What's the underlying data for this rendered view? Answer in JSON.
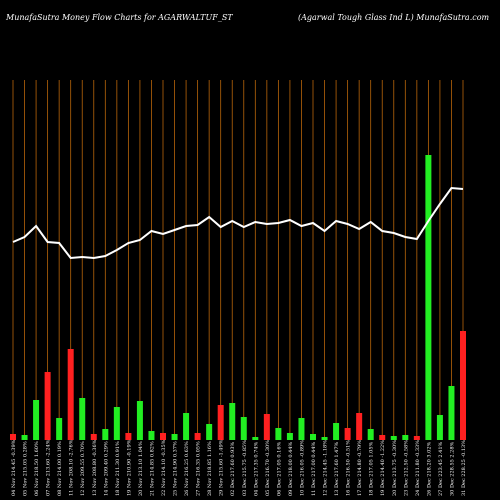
{
  "chart_data": {
    "type": "moneyflow",
    "title": "MunafaSutra  Money Flow  Charts for AGARWALTUF_ST",
    "subtitle": "(Agarwal Tough Glass Ind L) MunafaSutra.com",
    "categories": [
      "04 Nov 214.45 -0.39%",
      "05 Nov 215.05 0.28%",
      "06 Nov 218.50 1.60%",
      "07 Nov 213.60 -2.24%",
      "08 Nov 214.00 0.19%",
      "11 Nov 208.10 -2.76%",
      "12 Nov 209.55 0.70%",
      "13 Nov 208.80 -0.36%",
      "14 Nov 209.40 0.29%",
      "18 Nov 211.30 0.91%",
      "19 Nov 210.90 -0.19%",
      "20 Nov 213.10 1.04%",
      "21 Nov 214.85 0.82%",
      "22 Nov 214.10 -0.35%",
      "25 Nov 214.90 0.37%",
      "26 Nov 216.25 0.63%",
      "27 Nov 216.35 0.05%",
      "28 Nov 218.85 1.16%",
      "29 Nov 215.60 -1.49%",
      "02 Dec 217.60 0.93%",
      "03 Dec 215.75 -0.85%",
      "04 Dec 217.35 0.74%",
      "05 Dec 216.70 -0.30%",
      "06 Dec 217.05 0.16%",
      "09 Dec 218.00 0.44%",
      "10 Dec 216.05 -0.89%",
      "11 Dec 217.00 0.44%",
      "12 Dec 214.45 -1.18%",
      "13 Dec 217.60 1.47%",
      "16 Dec 216.50 -0.51%",
      "17 Dec 214.80 -0.79%",
      "18 Dec 217.05 1.05%",
      "19 Dec 214.40 -1.22%",
      "20 Dec 213.75 -0.30%",
      "23 Dec 212.50 -0.58%",
      "24 Dec 211.80 -0.33%",
      "26 Dec 218.20 3.02%",
      "27 Dec 223.45 2.41%",
      "30 Dec 228.55 2.28%",
      "31 Dec 228.25 -0.13%"
    ],
    "bar_values": [
      6,
      5,
      40,
      68,
      22,
      91,
      42,
      6,
      11,
      33,
      7,
      39,
      9,
      7,
      6,
      27,
      7,
      16,
      35,
      37,
      23,
      3,
      26,
      12,
      7,
      22,
      6,
      3,
      17,
      12,
      27,
      11,
      5,
      4,
      5,
      4,
      285,
      25,
      54,
      109
    ],
    "bar_colors": [
      "#ff2020",
      "#22ee22",
      "#22ee22",
      "#ff2020",
      "#22ee22",
      "#ff2020",
      "#22ee22",
      "#ff2020",
      "#22ee22",
      "#22ee22",
      "#ff2020",
      "#22ee22",
      "#22ee22",
      "#ff2020",
      "#22ee22",
      "#22ee22",
      "#ff2020",
      "#22ee22",
      "#ff2020",
      "#22ee22",
      "#22ee22",
      "#22ee22",
      "#ff2020",
      "#22ee22",
      "#22ee22",
      "#22ee22",
      "#22ee22",
      "#22ee22",
      "#22ee22",
      "#ff2020",
      "#ff2020",
      "#22ee22",
      "#ff2020",
      "#22ee22",
      "#22ee22",
      "#ff2020",
      "#22ee22",
      "#22ee22",
      "#22ee22",
      "#ff2020"
    ],
    "line_values": [
      198,
      203,
      214,
      198,
      197,
      182,
      183,
      182,
      184,
      190,
      197,
      200,
      209,
      206,
      210,
      214,
      215,
      223,
      213,
      219,
      213,
      218,
      216,
      217,
      220,
      214,
      217,
      209,
      219,
      216,
      211,
      218,
      209,
      207,
      203,
      201,
      219,
      236,
      252,
      251
    ],
    "line_color": "#ffffff",
    "grid_color": "#b8650a",
    "ylim": [
      0,
      300
    ]
  }
}
